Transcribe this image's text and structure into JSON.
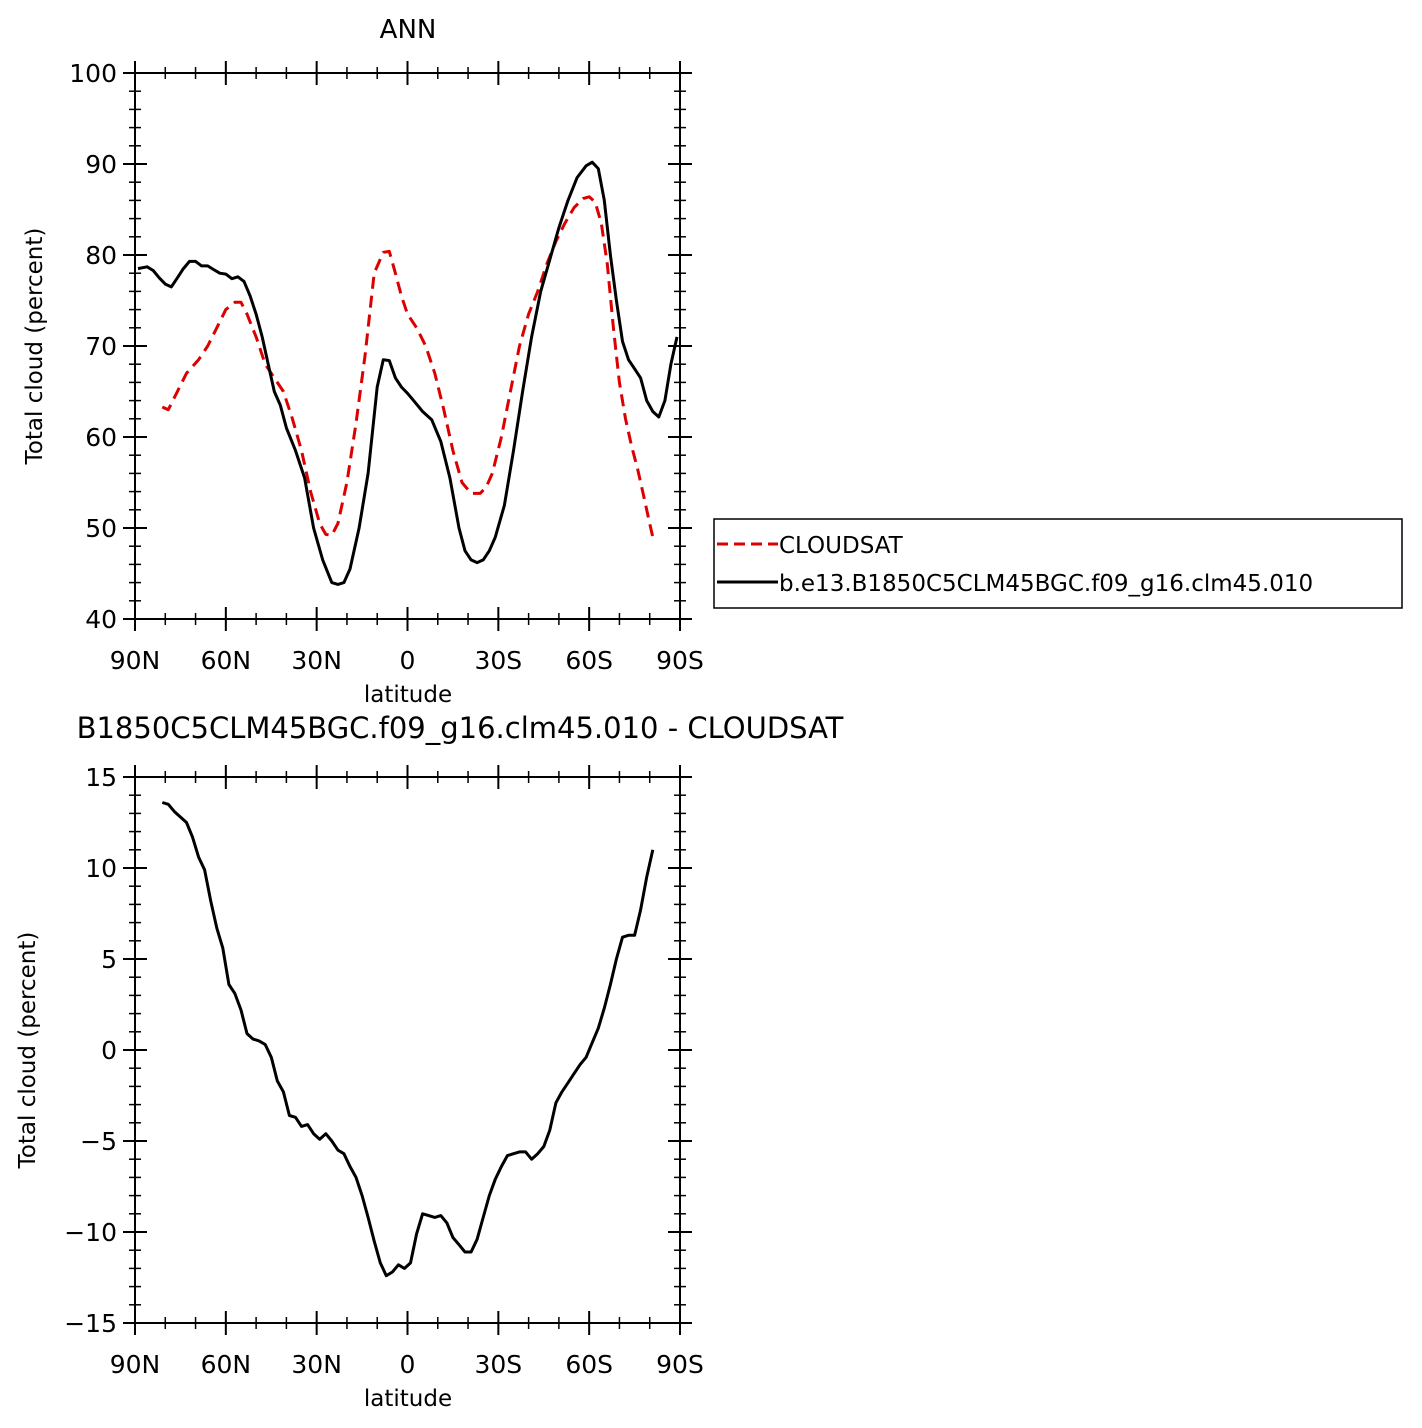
{
  "chart_data": [
    {
      "type": "line",
      "title": "ANN",
      "xlabel": "latitude",
      "ylabel": "Total cloud (percent)",
      "xlim": [
        90,
        -90
      ],
      "ylim": [
        40,
        100
      ],
      "yticks": [
        "40",
        "50",
        "60",
        "70",
        "80",
        "90",
        "100"
      ],
      "xticks": [
        {
          "value": 90,
          "label": "90N"
        },
        {
          "value": 60,
          "label": "60N"
        },
        {
          "value": 30,
          "label": "30N"
        },
        {
          "value": 0,
          "label": "0"
        },
        {
          "value": -30,
          "label": "30S"
        },
        {
          "value": -60,
          "label": "60S"
        },
        {
          "value": -90,
          "label": "90S"
        }
      ],
      "legend_position": "right",
      "series": [
        {
          "name": "CLOUDSAT",
          "color": "#dd0000",
          "dash": "dashed",
          "x": [
            81,
            79,
            76,
            73,
            69,
            66,
            63,
            60,
            57,
            55,
            53,
            50,
            47,
            44,
            41,
            38,
            35,
            32,
            29,
            27,
            25,
            23,
            20,
            17,
            14,
            11,
            8,
            6,
            4,
            2,
            0,
            -3,
            -6,
            -9,
            -12,
            -15,
            -18,
            -21,
            -24,
            -26,
            -28,
            -31,
            -34,
            -37,
            -40,
            -43,
            -46,
            -49,
            -52,
            -55,
            -58,
            -60,
            -62,
            -64,
            -66,
            -68,
            -70,
            -72,
            -74,
            -76,
            -78,
            -80,
            -81
          ],
          "y": [
            63.3,
            63.0,
            65.0,
            67.0,
            68.5,
            70.0,
            72.0,
            74.0,
            74.8,
            74.8,
            73.5,
            71.0,
            68.0,
            66.5,
            65.0,
            62.0,
            58.5,
            54.0,
            50.5,
            49.3,
            49.2,
            50.5,
            55.0,
            61.5,
            69.0,
            78.0,
            80.3,
            80.4,
            78.0,
            75.5,
            73.5,
            72.0,
            70.0,
            67.0,
            63.0,
            58.5,
            55.0,
            53.8,
            53.8,
            54.5,
            56.0,
            60.0,
            65.0,
            70.0,
            73.5,
            76.0,
            79.0,
            81.5,
            83.5,
            85.2,
            86.2,
            86.4,
            85.8,
            83.5,
            79.0,
            72.0,
            66.0,
            62.0,
            59.0,
            56.5,
            53.5,
            50.5,
            49.0
          ]
        },
        {
          "name": "b.e13.B1850C5CLM45BGC.f09_g16.clm45.010",
          "color": "#000000",
          "dash": "solid",
          "x": [
            89,
            86,
            84,
            82,
            80,
            78,
            76,
            74,
            72,
            70,
            68,
            66,
            64,
            62,
            60,
            58,
            56,
            54,
            52,
            50,
            48,
            46,
            44,
            42,
            40,
            37,
            34,
            31,
            28,
            25,
            23,
            21,
            19,
            16,
            13,
            10,
            8,
            6,
            4,
            2,
            0,
            -2,
            -5,
            -8,
            -11,
            -14,
            -17,
            -19,
            -21,
            -23,
            -25,
            -27,
            -29,
            -32,
            -35,
            -38,
            -41,
            -44,
            -47,
            -50,
            -53,
            -56,
            -59,
            -61,
            -63,
            -65,
            -67,
            -69,
            -71,
            -73,
            -75,
            -77,
            -79,
            -81,
            -83,
            -85,
            -87,
            -89
          ],
          "y": [
            78.5,
            78.7,
            78.3,
            77.5,
            76.8,
            76.5,
            77.5,
            78.5,
            79.3,
            79.3,
            78.8,
            78.8,
            78.4,
            78.0,
            77.9,
            77.4,
            77.6,
            77.1,
            75.5,
            73.5,
            71.0,
            68.0,
            65.0,
            63.5,
            61.0,
            58.5,
            55.5,
            50.0,
            46.5,
            44.0,
            43.8,
            44.0,
            45.5,
            50.0,
            56.0,
            65.5,
            68.5,
            68.4,
            66.5,
            65.5,
            64.8,
            64.0,
            62.8,
            61.9,
            59.5,
            55.5,
            50.0,
            47.5,
            46.5,
            46.2,
            46.5,
            47.5,
            49.0,
            52.5,
            58.5,
            65.0,
            71.0,
            76.0,
            79.5,
            83.0,
            86.0,
            88.5,
            89.8,
            90.2,
            89.5,
            86.0,
            80.0,
            75.0,
            70.5,
            68.5,
            67.5,
            66.5,
            64.0,
            62.8,
            62.2,
            64.0,
            68.0,
            71.0
          ]
        }
      ]
    },
    {
      "type": "line",
      "title": "B1850C5CLM45BGC.f09_g16.clm45.010 - CLOUDSAT",
      "xlabel": "latitude",
      "ylabel": "Total cloud (percent)",
      "xlim": [
        90,
        -90
      ],
      "ylim": [
        -15,
        15
      ],
      "yticks": [
        "-15",
        "-10",
        "-5",
        "0",
        "5",
        "10",
        "15"
      ],
      "xticks": [
        {
          "value": 90,
          "label": "90N"
        },
        {
          "value": 60,
          "label": "60N"
        },
        {
          "value": 30,
          "label": "30N"
        },
        {
          "value": 0,
          "label": "0"
        },
        {
          "value": -30,
          "label": "30S"
        },
        {
          "value": -60,
          "label": "60S"
        },
        {
          "value": -90,
          "label": "90S"
        }
      ],
      "series": [
        {
          "color": "#000000",
          "dash": "solid",
          "x": [
            81,
            79,
            77,
            75,
            73,
            71,
            69,
            67,
            65,
            63,
            61,
            59,
            57,
            55,
            53,
            51,
            49,
            47,
            45,
            43,
            41,
            39,
            37,
            35,
            33,
            31,
            29,
            27,
            25,
            23,
            21,
            19,
            17,
            15,
            13,
            11,
            9,
            7,
            5,
            3,
            1,
            -1,
            -3,
            -5,
            -7,
            -9,
            -11,
            -13,
            -15,
            -17,
            -19,
            -21,
            -23,
            -25,
            -27,
            -29,
            -31,
            -33,
            -35,
            -37,
            -39,
            -41,
            -43,
            -45,
            -47,
            -49,
            -51,
            -53,
            -55,
            -57,
            -59,
            -61,
            -63,
            -65,
            -67,
            -69,
            -71,
            -73,
            -75,
            -77,
            -79,
            -81
          ],
          "y": [
            13.6,
            13.5,
            13.1,
            12.8,
            12.5,
            11.7,
            10.6,
            9.9,
            8.2,
            6.7,
            5.6,
            3.6,
            3.1,
            2.2,
            0.9,
            0.6,
            0.5,
            0.3,
            -0.4,
            -1.7,
            -2.3,
            -3.6,
            -3.7,
            -4.2,
            -4.1,
            -4.6,
            -4.9,
            -4.6,
            -5.0,
            -5.5,
            -5.7,
            -6.4,
            -7.0,
            -8.0,
            -9.2,
            -10.5,
            -11.7,
            -12.4,
            -12.2,
            -11.8,
            -12.0,
            -11.7,
            -10.1,
            -9.0,
            -9.1,
            -9.2,
            -9.1,
            -9.5,
            -10.3,
            -10.7,
            -11.1,
            -11.1,
            -10.4,
            -9.2,
            -8.0,
            -7.1,
            -6.4,
            -5.8,
            -5.7,
            -5.6,
            -5.6,
            -6.0,
            -5.7,
            -5.3,
            -4.4,
            -2.9,
            -2.3,
            -1.8,
            -1.3,
            -0.8,
            -0.4,
            0.4,
            1.2,
            2.3,
            3.6,
            5.0,
            6.2,
            6.3,
            6.3,
            7.7,
            9.5,
            11.0
          ]
        }
      ]
    }
  ]
}
